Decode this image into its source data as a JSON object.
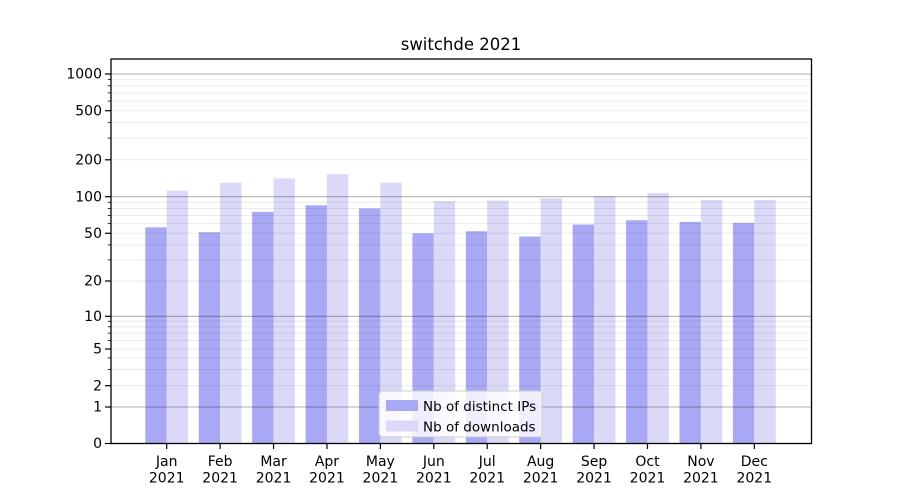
{
  "chart_data": {
    "type": "bar",
    "title": "switchde 2021",
    "months": [
      "Jan",
      "Feb",
      "Mar",
      "Apr",
      "May",
      "Jun",
      "Jul",
      "Aug",
      "Sep",
      "Oct",
      "Nov",
      "Dec"
    ],
    "x_tick_year": "2021",
    "categories": [
      "Jan 2021",
      "Feb 2021",
      "Mar 2021",
      "Apr 2021",
      "May 2021",
      "Jun 2021",
      "Jul 2021",
      "Aug 2021",
      "Sep 2021",
      "Oct 2021",
      "Nov 2021",
      "Dec 2021"
    ],
    "series": [
      {
        "name": "Nb of distinct IPs",
        "color": "#a8a8f4",
        "values": [
          56,
          51,
          75,
          85,
          80,
          50,
          52,
          47,
          59,
          64,
          62,
          61
        ]
      },
      {
        "name": "Nb of downloads",
        "color": "#dadaf8",
        "values": [
          112,
          130,
          141,
          153,
          130,
          92,
          93,
          97,
          101,
          107,
          94,
          94
        ]
      }
    ],
    "yscale": "symlog",
    "yticks": [
      0,
      1,
      2,
      5,
      10,
      20,
      50,
      100,
      200,
      500,
      1000
    ],
    "ylim": [
      0,
      1300
    ],
    "grid": "both",
    "legend": {
      "position": "lower-center"
    },
    "xlabel": "",
    "ylabel": ""
  },
  "colors": {
    "background": "#ffffff",
    "spine": "#000000",
    "major_grid": "rgba(0,0,0,0.30)",
    "minor_grid": "rgba(0,0,0,0.08)",
    "legend_fill": "rgba(255,255,255,0.8)",
    "legend_border": "#cccccc",
    "tick_text": "#000000"
  }
}
